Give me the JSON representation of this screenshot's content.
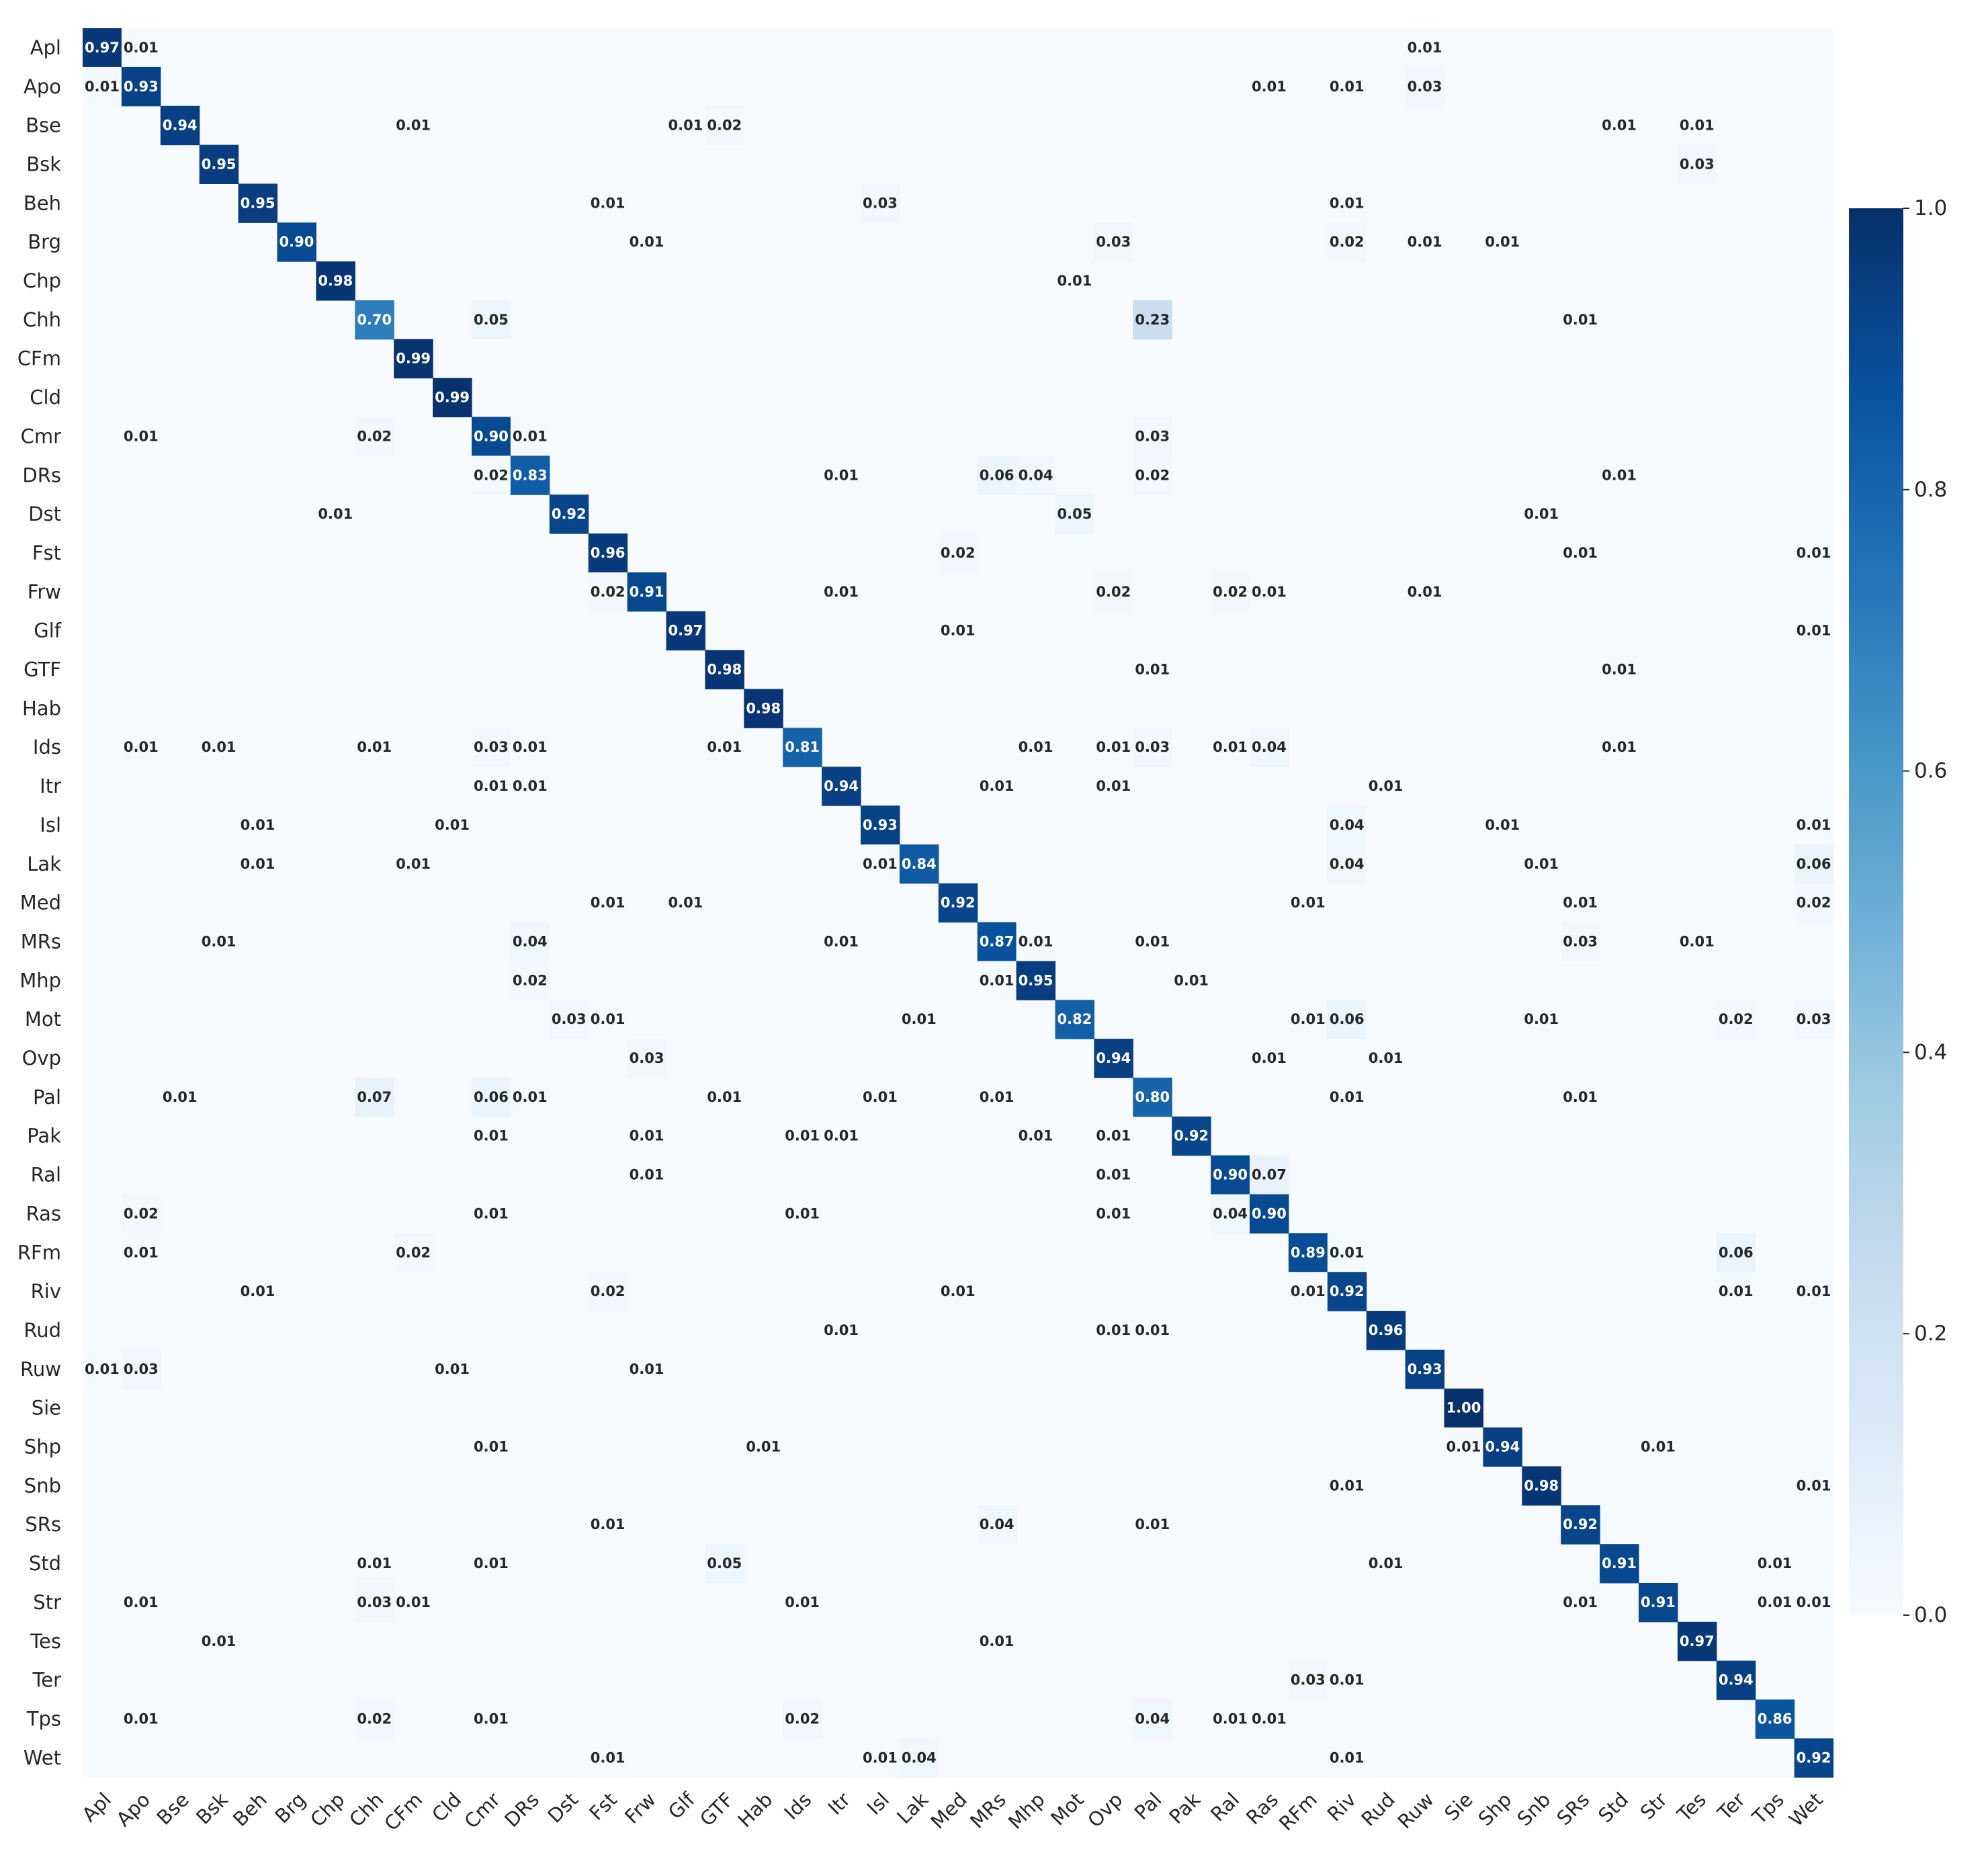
{
  "chart_data": {
    "type": "heatmap",
    "title": "",
    "xlabel": "",
    "ylabel": "",
    "row_labels": [
      "Apl",
      "Apo",
      "Bse",
      "Bsk",
      "Beh",
      "Brg",
      "Chp",
      "Chh",
      "CFm",
      "Cld",
      "Cmr",
      "DRs",
      "Dst",
      "Fst",
      "Frw",
      "Glf",
      "GTF",
      "Hab",
      "Ids",
      "Itr",
      "Isl",
      "Lak",
      "Med",
      "MRs",
      "Mhp",
      "Mot",
      "Ovp",
      "Pal",
      "Pak",
      "Ral",
      "Ras",
      "RFm",
      "Riv",
      "Rud",
      "Ruw",
      "Sie",
      "Shp",
      "Snb",
      "SRs",
      "Std",
      "Str",
      "Tes",
      "Ter",
      "Tps",
      "Wet"
    ],
    "col_labels": [
      "Apl",
      "Apo",
      "Bse",
      "Bsk",
      "Beh",
      "Brg",
      "Chp",
      "Chh",
      "CFm",
      "Cld",
      "Cmr",
      "DRs",
      "Dst",
      "Fst",
      "Frw",
      "Glf",
      "GTF",
      "Hab",
      "Ids",
      "Itr",
      "Isl",
      "Lak",
      "Med",
      "MRs",
      "Mhp",
      "Mot",
      "Ovp",
      "Pal",
      "Pak",
      "Ral",
      "Ras",
      "RFm",
      "Riv",
      "Rud",
      "Ruw",
      "Sie",
      "Shp",
      "Snb",
      "SRs",
      "Std",
      "Str",
      "Tes",
      "Ter",
      "Tps",
      "Wet"
    ],
    "colorbar": {
      "vmin": 0.0,
      "vmax": 1.0,
      "ticks": [
        "0.0",
        "0.2",
        "0.4",
        "0.6",
        "0.8",
        "1.0"
      ],
      "colormap": "Blues"
    },
    "cells": [
      [
        0,
        0,
        0.97
      ],
      [
        0,
        1,
        0.01
      ],
      [
        0,
        34,
        0.01
      ],
      [
        1,
        0,
        0.01
      ],
      [
        1,
        1,
        0.93
      ],
      [
        1,
        30,
        0.01
      ],
      [
        1,
        32,
        0.01
      ],
      [
        1,
        34,
        0.03
      ],
      [
        2,
        2,
        0.94
      ],
      [
        2,
        8,
        0.01
      ],
      [
        2,
        15,
        0.01
      ],
      [
        2,
        16,
        0.02
      ],
      [
        2,
        39,
        0.01
      ],
      [
        2,
        41,
        0.01
      ],
      [
        3,
        3,
        0.95
      ],
      [
        3,
        41,
        0.03
      ],
      [
        4,
        4,
        0.95
      ],
      [
        4,
        13,
        0.01
      ],
      [
        4,
        20,
        0.03
      ],
      [
        4,
        32,
        0.01
      ],
      [
        5,
        5,
        0.9
      ],
      [
        5,
        14,
        0.01
      ],
      [
        5,
        26,
        0.03
      ],
      [
        5,
        32,
        0.02
      ],
      [
        5,
        34,
        0.01
      ],
      [
        5,
        36,
        0.01
      ],
      [
        6,
        6,
        0.98
      ],
      [
        6,
        25,
        0.01
      ],
      [
        7,
        7,
        0.7
      ],
      [
        7,
        10,
        0.05
      ],
      [
        7,
        27,
        0.23
      ],
      [
        7,
        38,
        0.01
      ],
      [
        8,
        8,
        0.99
      ],
      [
        9,
        9,
        0.99
      ],
      [
        10,
        1,
        0.01
      ],
      [
        10,
        7,
        0.02
      ],
      [
        10,
        10,
        0.9
      ],
      [
        10,
        11,
        0.01
      ],
      [
        10,
        27,
        0.03
      ],
      [
        11,
        10,
        0.02
      ],
      [
        11,
        11,
        0.83
      ],
      [
        11,
        19,
        0.01
      ],
      [
        11,
        23,
        0.06
      ],
      [
        11,
        24,
        0.04
      ],
      [
        11,
        27,
        0.02
      ],
      [
        11,
        39,
        0.01
      ],
      [
        12,
        6,
        0.01
      ],
      [
        12,
        12,
        0.92
      ],
      [
        12,
        25,
        0.05
      ],
      [
        12,
        37,
        0.01
      ],
      [
        13,
        13,
        0.96
      ],
      [
        13,
        22,
        0.02
      ],
      [
        13,
        38,
        0.01
      ],
      [
        13,
        44,
        0.01
      ],
      [
        14,
        13,
        0.02
      ],
      [
        14,
        14,
        0.91
      ],
      [
        14,
        19,
        0.01
      ],
      [
        14,
        26,
        0.02
      ],
      [
        14,
        29,
        0.02
      ],
      [
        14,
        30,
        0.01
      ],
      [
        14,
        34,
        0.01
      ],
      [
        15,
        15,
        0.97
      ],
      [
        15,
        22,
        0.01
      ],
      [
        15,
        44,
        0.01
      ],
      [
        16,
        16,
        0.98
      ],
      [
        16,
        27,
        0.01
      ],
      [
        16,
        39,
        0.01
      ],
      [
        17,
        17,
        0.98
      ],
      [
        18,
        1,
        0.01
      ],
      [
        18,
        3,
        0.01
      ],
      [
        18,
        7,
        0.01
      ],
      [
        18,
        10,
        0.03
      ],
      [
        18,
        11,
        0.01
      ],
      [
        18,
        16,
        0.01
      ],
      [
        18,
        18,
        0.81
      ],
      [
        18,
        24,
        0.01
      ],
      [
        18,
        26,
        0.01
      ],
      [
        18,
        27,
        0.03
      ],
      [
        18,
        29,
        0.01
      ],
      [
        18,
        30,
        0.04
      ],
      [
        18,
        39,
        0.01
      ],
      [
        19,
        10,
        0.01
      ],
      [
        19,
        11,
        0.01
      ],
      [
        19,
        19,
        0.94
      ],
      [
        19,
        23,
        0.01
      ],
      [
        19,
        26,
        0.01
      ],
      [
        19,
        33,
        0.01
      ],
      [
        20,
        4,
        0.01
      ],
      [
        20,
        9,
        0.01
      ],
      [
        20,
        20,
        0.93
      ],
      [
        20,
        32,
        0.04
      ],
      [
        20,
        36,
        0.01
      ],
      [
        20,
        44,
        0.01
      ],
      [
        21,
        4,
        0.01
      ],
      [
        21,
        8,
        0.01
      ],
      [
        21,
        20,
        0.01
      ],
      [
        21,
        21,
        0.84
      ],
      [
        21,
        32,
        0.04
      ],
      [
        21,
        37,
        0.01
      ],
      [
        21,
        44,
        0.06
      ],
      [
        22,
        13,
        0.01
      ],
      [
        22,
        15,
        0.01
      ],
      [
        22,
        22,
        0.92
      ],
      [
        22,
        31,
        0.01
      ],
      [
        22,
        38,
        0.01
      ],
      [
        22,
        44,
        0.02
      ],
      [
        23,
        3,
        0.01
      ],
      [
        23,
        11,
        0.04
      ],
      [
        23,
        19,
        0.01
      ],
      [
        23,
        23,
        0.87
      ],
      [
        23,
        24,
        0.01
      ],
      [
        23,
        27,
        0.01
      ],
      [
        23,
        38,
        0.03
      ],
      [
        23,
        41,
        0.01
      ],
      [
        24,
        11,
        0.02
      ],
      [
        24,
        23,
        0.01
      ],
      [
        24,
        24,
        0.95
      ],
      [
        24,
        28,
        0.01
      ],
      [
        25,
        12,
        0.03
      ],
      [
        25,
        13,
        0.01
      ],
      [
        25,
        21,
        0.01
      ],
      [
        25,
        25,
        0.82
      ],
      [
        25,
        31,
        0.01
      ],
      [
        25,
        32,
        0.06
      ],
      [
        25,
        37,
        0.01
      ],
      [
        25,
        42,
        0.02
      ],
      [
        25,
        44,
        0.03
      ],
      [
        26,
        14,
        0.03
      ],
      [
        26,
        26,
        0.94
      ],
      [
        26,
        30,
        0.01
      ],
      [
        26,
        33,
        0.01
      ],
      [
        27,
        2,
        0.01
      ],
      [
        27,
        7,
        0.07
      ],
      [
        27,
        10,
        0.06
      ],
      [
        27,
        11,
        0.01
      ],
      [
        27,
        16,
        0.01
      ],
      [
        27,
        20,
        0.01
      ],
      [
        27,
        23,
        0.01
      ],
      [
        27,
        27,
        0.8
      ],
      [
        27,
        32,
        0.01
      ],
      [
        27,
        38,
        0.01
      ],
      [
        28,
        10,
        0.01
      ],
      [
        28,
        14,
        0.01
      ],
      [
        28,
        18,
        0.01
      ],
      [
        28,
        19,
        0.01
      ],
      [
        28,
        24,
        0.01
      ],
      [
        28,
        26,
        0.01
      ],
      [
        28,
        28,
        0.92
      ],
      [
        29,
        14,
        0.01
      ],
      [
        29,
        26,
        0.01
      ],
      [
        29,
        29,
        0.9
      ],
      [
        29,
        30,
        0.07
      ],
      [
        30,
        1,
        0.02
      ],
      [
        30,
        10,
        0.01
      ],
      [
        30,
        18,
        0.01
      ],
      [
        30,
        26,
        0.01
      ],
      [
        30,
        29,
        0.04
      ],
      [
        30,
        30,
        0.9
      ],
      [
        31,
        1,
        0.01
      ],
      [
        31,
        8,
        0.02
      ],
      [
        31,
        31,
        0.89
      ],
      [
        31,
        32,
        0.01
      ],
      [
        31,
        42,
        0.06
      ],
      [
        32,
        4,
        0.01
      ],
      [
        32,
        13,
        0.02
      ],
      [
        32,
        22,
        0.01
      ],
      [
        32,
        31,
        0.01
      ],
      [
        32,
        32,
        0.92
      ],
      [
        32,
        42,
        0.01
      ],
      [
        32,
        44,
        0.01
      ],
      [
        33,
        19,
        0.01
      ],
      [
        33,
        26,
        0.01
      ],
      [
        33,
        27,
        0.01
      ],
      [
        33,
        33,
        0.96
      ],
      [
        34,
        0,
        0.01
      ],
      [
        34,
        1,
        0.03
      ],
      [
        34,
        9,
        0.01
      ],
      [
        34,
        14,
        0.01
      ],
      [
        34,
        34,
        0.93
      ],
      [
        35,
        35,
        1.0
      ],
      [
        36,
        10,
        0.01
      ],
      [
        36,
        17,
        0.01
      ],
      [
        36,
        35,
        0.01
      ],
      [
        36,
        36,
        0.94
      ],
      [
        36,
        40,
        0.01
      ],
      [
        37,
        32,
        0.01
      ],
      [
        37,
        37,
        0.98
      ],
      [
        37,
        44,
        0.01
      ],
      [
        38,
        13,
        0.01
      ],
      [
        38,
        23,
        0.04
      ],
      [
        38,
        27,
        0.01
      ],
      [
        38,
        38,
        0.92
      ],
      [
        39,
        7,
        0.01
      ],
      [
        39,
        10,
        0.01
      ],
      [
        39,
        16,
        0.05
      ],
      [
        39,
        33,
        0.01
      ],
      [
        39,
        39,
        0.91
      ],
      [
        39,
        43,
        0.01
      ],
      [
        40,
        1,
        0.01
      ],
      [
        40,
        7,
        0.03
      ],
      [
        40,
        8,
        0.01
      ],
      [
        40,
        18,
        0.01
      ],
      [
        40,
        38,
        0.01
      ],
      [
        40,
        40,
        0.91
      ],
      [
        40,
        43,
        0.01
      ],
      [
        40,
        44,
        0.01
      ],
      [
        41,
        3,
        0.01
      ],
      [
        41,
        23,
        0.01
      ],
      [
        41,
        41,
        0.97
      ],
      [
        42,
        31,
        0.03
      ],
      [
        42,
        32,
        0.01
      ],
      [
        42,
        42,
        0.94
      ],
      [
        43,
        1,
        0.01
      ],
      [
        43,
        7,
        0.02
      ],
      [
        43,
        10,
        0.01
      ],
      [
        43,
        18,
        0.02
      ],
      [
        43,
        27,
        0.04
      ],
      [
        43,
        29,
        0.01
      ],
      [
        43,
        30,
        0.01
      ],
      [
        43,
        43,
        0.86
      ],
      [
        44,
        13,
        0.01
      ],
      [
        44,
        20,
        0.01
      ],
      [
        44,
        21,
        0.04
      ],
      [
        44,
        32,
        0.01
      ],
      [
        44,
        44,
        0.92
      ]
    ]
  }
}
